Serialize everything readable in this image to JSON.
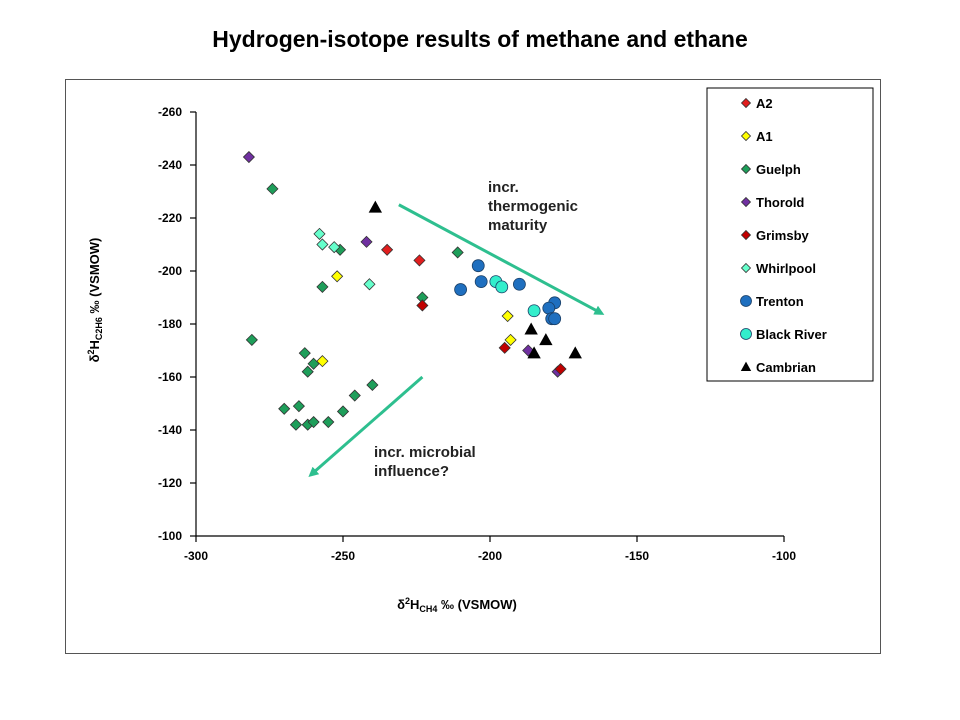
{
  "title": "Hydrogen-isotope results of methane and ethane",
  "chart_data": {
    "type": "scatter",
    "title": "Hydrogen-isotope results of methane and ethane",
    "xlabel": {
      "symbol": "δ",
      "sup": "2",
      "base": "H",
      "sub": "CH4",
      "unit": " ‰ (VSMOW)"
    },
    "ylabel": {
      "symbol": "δ",
      "sup": "2",
      "base": "H",
      "sub": "C2H6",
      "unit": " ‰ (VSMOW)"
    },
    "xlim": [
      -300,
      -100
    ],
    "ylim": [
      -100,
      -260
    ],
    "x_reversed": false,
    "y_axis_inverted": true,
    "xticks": [
      "-300",
      "-250",
      "-200",
      "-150",
      "-100"
    ],
    "yticks": [
      "-260",
      "-240",
      "-220",
      "-200",
      "-180",
      "-160",
      "-140",
      "-120",
      "-100"
    ],
    "grid": false,
    "legend_position": "right",
    "series": [
      {
        "name": "A2",
        "marker": "diamond",
        "color": "#e01e1e",
        "points": [
          [
            -235,
            -208
          ],
          [
            -224,
            -204
          ]
        ]
      },
      {
        "name": "A1",
        "marker": "diamond",
        "color": "#ffff00",
        "points": [
          [
            -252,
            -198
          ],
          [
            -257,
            -166
          ],
          [
            -194,
            -183
          ],
          [
            -193,
            -174
          ]
        ]
      },
      {
        "name": "Guelph",
        "marker": "diamond",
        "color": "#1e9e5a",
        "points": [
          [
            -274,
            -231
          ],
          [
            -281,
            -174
          ],
          [
            -257,
            -194
          ],
          [
            -251,
            -208
          ],
          [
            -211,
            -207
          ],
          [
            -223,
            -190
          ],
          [
            -263,
            -169
          ],
          [
            -260,
            -165
          ],
          [
            -262,
            -162
          ],
          [
            -270,
            -148
          ],
          [
            -265,
            -149
          ],
          [
            -266,
            -142
          ],
          [
            -262,
            -142
          ],
          [
            -260,
            -143
          ],
          [
            -255,
            -143
          ],
          [
            -250,
            -147
          ],
          [
            -246,
            -153
          ],
          [
            -240,
            -157
          ]
        ]
      },
      {
        "name": "Thorold",
        "marker": "diamond",
        "color": "#7030a0",
        "points": [
          [
            -282,
            -243
          ],
          [
            -242,
            -211
          ],
          [
            -187,
            -170
          ],
          [
            -177,
            -162
          ]
        ]
      },
      {
        "name": "Grimsby",
        "marker": "diamond",
        "color": "#c00000",
        "points": [
          [
            -223,
            -187
          ],
          [
            -195,
            -171
          ],
          [
            -176,
            -163
          ]
        ]
      },
      {
        "name": "Whirlpool",
        "marker": "diamond",
        "color": "#66ffcc",
        "points": [
          [
            -258,
            -214
          ],
          [
            -257,
            -210
          ],
          [
            -253,
            -209
          ],
          [
            -241,
            -195
          ]
        ]
      },
      {
        "name": "Trenton",
        "marker": "circle",
        "color": "#1f6fbf",
        "points": [
          [
            -204,
            -202
          ],
          [
            -203,
            -196
          ],
          [
            -190,
            -195
          ],
          [
            -210,
            -193
          ],
          [
            -178,
            -188
          ],
          [
            -180,
            -186
          ],
          [
            -179,
            -182
          ],
          [
            -178,
            -182
          ]
        ]
      },
      {
        "name": "Black River",
        "marker": "circle",
        "color": "#33eecc",
        "points": [
          [
            -198,
            -196
          ],
          [
            -196,
            -194
          ],
          [
            -185,
            -185
          ]
        ]
      },
      {
        "name": "Cambrian",
        "marker": "triangle",
        "color": "#000000",
        "points": [
          [
            -239,
            -224
          ],
          [
            -186,
            -178
          ],
          [
            -185,
            -169
          ],
          [
            -181,
            -174
          ],
          [
            -171,
            -169
          ]
        ]
      }
    ],
    "annotations": [
      {
        "text": [
          "incr.",
          "thermogenic",
          "maturity"
        ],
        "arrow_from": [
          -231,
          -225
        ],
        "arrow_to": [
          -162,
          -184
        ]
      },
      {
        "text": [
          "incr. microbial",
          "influence?"
        ],
        "arrow_from": [
          -223,
          -160
        ],
        "arrow_to": [
          -261,
          -123
        ]
      }
    ]
  }
}
